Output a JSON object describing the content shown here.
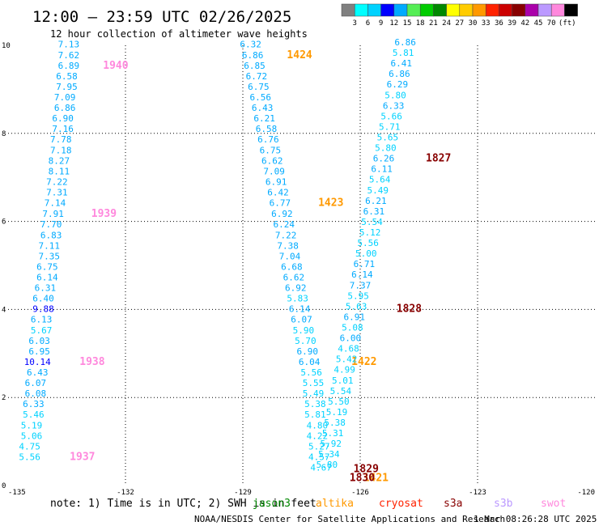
{
  "title": "12:00 – 23:59 UTC 02/26/2025",
  "subtitle": "12 hour collection of altimeter wave heights",
  "color_scale": {
    "unit": "(ft)",
    "colors": [
      "#808080",
      "#00ffff",
      "#00d2ff",
      "#0000ff",
      "#00aaff",
      "#55ee55",
      "#00cc00",
      "#008800",
      "#ffff00",
      "#ffcc00",
      "#ff9900",
      "#ff2200",
      "#cc0000",
      "#880000",
      "#aa00aa",
      "#bb99ff",
      "#ff88dd",
      "#000000"
    ],
    "labels": [
      "3",
      "6",
      "9",
      "12",
      "15",
      "18",
      "21",
      "24",
      "27",
      "30",
      "33",
      "36",
      "39",
      "42",
      "45",
      "70"
    ]
  },
  "chart_data": {
    "type": "scatter",
    "title": "12:00 – 23:59 UTC 02/26/2025",
    "subtitle": "12 hour collection of altimeter wave heights",
    "xlim": [
      -135,
      -120
    ],
    "ylim": [
      0,
      10
    ],
    "xticks": [
      "-135",
      "-132",
      "-129",
      "-126",
      "-123",
      "-120"
    ],
    "yticks": [
      "0",
      "2",
      "4",
      "6",
      "8",
      "10"
    ],
    "grid": true,
    "series": [
      {
        "pass": 1,
        "points": [
          {
            "x": -133.45,
            "y": 9.95,
            "v": "7.13",
            "c": "#00aaff"
          },
          {
            "x": -133.45,
            "y": 9.71,
            "v": "7.62",
            "c": "#00aaff"
          },
          {
            "x": -133.45,
            "y": 9.47,
            "v": "6.89",
            "c": "#00aaff"
          },
          {
            "x": -133.5,
            "y": 9.23,
            "v": "6.58",
            "c": "#00aaff"
          },
          {
            "x": -133.5,
            "y": 8.99,
            "v": "7.95",
            "c": "#00aaff"
          },
          {
            "x": -133.55,
            "y": 8.75,
            "v": "7.09",
            "c": "#00aaff"
          },
          {
            "x": -133.55,
            "y": 8.51,
            "v": "6.86",
            "c": "#00aaff"
          },
          {
            "x": -133.6,
            "y": 8.27,
            "v": "6.90",
            "c": "#00aaff"
          },
          {
            "x": -133.6,
            "y": 8.03,
            "v": "7.16",
            "c": "#00aaff"
          },
          {
            "x": -133.65,
            "y": 7.79,
            "v": "7.78",
            "c": "#00aaff"
          },
          {
            "x": -133.65,
            "y": 7.55,
            "v": "7.18",
            "c": "#00aaff"
          },
          {
            "x": -133.7,
            "y": 7.31,
            "v": "8.27",
            "c": "#00aaff"
          },
          {
            "x": -133.7,
            "y": 7.07,
            "v": "8.11",
            "c": "#00aaff"
          },
          {
            "x": -133.75,
            "y": 6.83,
            "v": "7.22",
            "c": "#00aaff"
          },
          {
            "x": -133.75,
            "y": 6.59,
            "v": "7.31",
            "c": "#00aaff"
          },
          {
            "x": -133.8,
            "y": 6.35,
            "v": "7.14",
            "c": "#00aaff"
          },
          {
            "x": -133.85,
            "y": 6.1,
            "v": "7.91",
            "c": "#00aaff"
          },
          {
            "x": -133.9,
            "y": 5.86,
            "v": "7.70",
            "c": "#00aaff"
          },
          {
            "x": -133.9,
            "y": 5.62,
            "v": "6.83",
            "c": "#00aaff"
          },
          {
            "x": -133.95,
            "y": 5.38,
            "v": "7.11",
            "c": "#00aaff"
          },
          {
            "x": -133.95,
            "y": 5.14,
            "v": "7.35",
            "c": "#00aaff"
          },
          {
            "x": -134.0,
            "y": 4.9,
            "v": "6.75",
            "c": "#00aaff"
          },
          {
            "x": -134.0,
            "y": 4.66,
            "v": "6.14",
            "c": "#00aaff"
          },
          {
            "x": -134.05,
            "y": 4.42,
            "v": "6.31",
            "c": "#00aaff"
          },
          {
            "x": -134.1,
            "y": 4.18,
            "v": "6.40",
            "c": "#00aaff"
          },
          {
            "x": -134.1,
            "y": 3.94,
            "v": "9.88",
            "c": "#0000ff"
          },
          {
            "x": -134.15,
            "y": 3.7,
            "v": "6.13",
            "c": "#00aaff"
          },
          {
            "x": -134.15,
            "y": 3.46,
            "v": "5.67",
            "c": "#00d2ff"
          },
          {
            "x": -134.2,
            "y": 3.22,
            "v": "6.03",
            "c": "#00aaff"
          },
          {
            "x": -134.2,
            "y": 2.98,
            "v": "6.95",
            "c": "#00aaff"
          },
          {
            "x": -134.25,
            "y": 2.74,
            "v": "10.14",
            "c": "#0000ff"
          },
          {
            "x": -134.25,
            "y": 2.5,
            "v": "6.43",
            "c": "#00aaff"
          },
          {
            "x": -134.3,
            "y": 2.26,
            "v": "6.07",
            "c": "#00aaff"
          },
          {
            "x": -134.3,
            "y": 2.02,
            "v": "6.08",
            "c": "#00aaff"
          },
          {
            "x": -134.35,
            "y": 1.78,
            "v": "6.33",
            "c": "#00aaff"
          },
          {
            "x": -134.35,
            "y": 1.54,
            "v": "5.46",
            "c": "#00d2ff"
          },
          {
            "x": -134.4,
            "y": 1.3,
            "v": "5.19",
            "c": "#00d2ff"
          },
          {
            "x": -134.4,
            "y": 1.06,
            "v": "5.06",
            "c": "#00d2ff"
          },
          {
            "x": -134.45,
            "y": 0.82,
            "v": "4.75",
            "c": "#00d2ff"
          },
          {
            "x": -134.45,
            "y": 0.58,
            "v": "5.56",
            "c": "#00d2ff"
          }
        ],
        "times": [
          {
            "x": -132.25,
            "y": 9.47,
            "t": "1940",
            "c": "#ff88dd"
          },
          {
            "x": -132.55,
            "y": 6.1,
            "t": "1939",
            "c": "#ff88dd"
          },
          {
            "x": -132.85,
            "y": 2.74,
            "t": "1938",
            "c": "#ff88dd"
          },
          {
            "x": -133.1,
            "y": 0.58,
            "t": "1937",
            "c": "#ff88dd"
          }
        ]
      },
      {
        "pass": 2,
        "points": [
          {
            "x": -128.8,
            "y": 9.95,
            "v": "6.32",
            "c": "#00aaff"
          },
          {
            "x": -128.75,
            "y": 9.71,
            "v": "6.86",
            "c": "#00aaff"
          },
          {
            "x": -128.7,
            "y": 9.47,
            "v": "6.85",
            "c": "#00aaff"
          },
          {
            "x": -128.65,
            "y": 9.23,
            "v": "6.72",
            "c": "#00aaff"
          },
          {
            "x": -128.6,
            "y": 8.99,
            "v": "6.75",
            "c": "#00aaff"
          },
          {
            "x": -128.55,
            "y": 8.75,
            "v": "6.56",
            "c": "#00aaff"
          },
          {
            "x": -128.5,
            "y": 8.51,
            "v": "6.43",
            "c": "#00aaff"
          },
          {
            "x": -128.45,
            "y": 8.27,
            "v": "6.21",
            "c": "#00aaff"
          },
          {
            "x": -128.4,
            "y": 8.03,
            "v": "6.58",
            "c": "#00aaff"
          },
          {
            "x": -128.35,
            "y": 7.79,
            "v": "6.76",
            "c": "#00aaff"
          },
          {
            "x": -128.3,
            "y": 7.55,
            "v": "6.75",
            "c": "#00aaff"
          },
          {
            "x": -128.25,
            "y": 7.31,
            "v": "6.62",
            "c": "#00aaff"
          },
          {
            "x": -128.2,
            "y": 7.07,
            "v": "7.09",
            "c": "#00aaff"
          },
          {
            "x": -128.15,
            "y": 6.83,
            "v": "6.91",
            "c": "#00aaff"
          },
          {
            "x": -128.1,
            "y": 6.59,
            "v": "6.42",
            "c": "#00aaff"
          },
          {
            "x": -128.05,
            "y": 6.35,
            "v": "6.77",
            "c": "#00aaff"
          },
          {
            "x": -128.0,
            "y": 6.1,
            "v": "6.92",
            "c": "#00aaff"
          },
          {
            "x": -127.95,
            "y": 5.86,
            "v": "6.24",
            "c": "#00aaff"
          },
          {
            "x": -127.9,
            "y": 5.62,
            "v": "7.22",
            "c": "#00aaff"
          },
          {
            "x": -127.85,
            "y": 5.38,
            "v": "7.38",
            "c": "#00aaff"
          },
          {
            "x": -127.8,
            "y": 5.14,
            "v": "7.04",
            "c": "#00aaff"
          },
          {
            "x": -127.75,
            "y": 4.9,
            "v": "6.68",
            "c": "#00aaff"
          },
          {
            "x": -127.7,
            "y": 4.66,
            "v": "6.62",
            "c": "#00aaff"
          },
          {
            "x": -127.65,
            "y": 4.42,
            "v": "6.92",
            "c": "#00aaff"
          },
          {
            "x": -127.6,
            "y": 4.18,
            "v": "5.83",
            "c": "#00d2ff"
          },
          {
            "x": -127.55,
            "y": 3.94,
            "v": "6.14",
            "c": "#00aaff"
          },
          {
            "x": -127.5,
            "y": 3.7,
            "v": "6.07",
            "c": "#00aaff"
          },
          {
            "x": -127.45,
            "y": 3.46,
            "v": "5.90",
            "c": "#00d2ff"
          },
          {
            "x": -127.4,
            "y": 3.22,
            "v": "5.70",
            "c": "#00d2ff"
          },
          {
            "x": -127.35,
            "y": 2.98,
            "v": "6.90",
            "c": "#00aaff"
          },
          {
            "x": -127.3,
            "y": 2.74,
            "v": "6.04",
            "c": "#00aaff"
          },
          {
            "x": -127.25,
            "y": 2.5,
            "v": "5.56",
            "c": "#00d2ff"
          },
          {
            "x": -127.2,
            "y": 2.26,
            "v": "5.55",
            "c": "#00d2ff"
          },
          {
            "x": -127.2,
            "y": 2.02,
            "v": "5.49",
            "c": "#00d2ff"
          },
          {
            "x": -127.15,
            "y": 1.78,
            "v": "5.38",
            "c": "#00d2ff"
          },
          {
            "x": -127.15,
            "y": 1.54,
            "v": "5.81",
            "c": "#00d2ff"
          },
          {
            "x": -127.1,
            "y": 1.3,
            "v": "4.80",
            "c": "#00d2ff"
          },
          {
            "x": -127.1,
            "y": 1.06,
            "v": "4.22",
            "c": "#00d2ff"
          },
          {
            "x": -127.05,
            "y": 0.82,
            "v": "5.27",
            "c": "#00d2ff"
          },
          {
            "x": -127.05,
            "y": 0.58,
            "v": "4.57",
            "c": "#00d2ff"
          },
          {
            "x": -127.0,
            "y": 0.34,
            "v": "4.67",
            "c": "#00d2ff"
          }
        ],
        "times": [
          {
            "x": -127.55,
            "y": 9.71,
            "t": "1424",
            "c": "#ff9900"
          },
          {
            "x": -126.75,
            "y": 6.35,
            "t": "1423",
            "c": "#ff9900"
          },
          {
            "x": -125.9,
            "y": 2.74,
            "t": "1422",
            "c": "#ff9900"
          },
          {
            "x": -125.6,
            "y": 0.1,
            "t": "1421",
            "c": "#ff9900"
          }
        ]
      },
      {
        "pass": 3,
        "points": [
          {
            "x": -124.85,
            "y": 10.0,
            "v": "6.86",
            "c": "#00aaff"
          },
          {
            "x": -124.9,
            "y": 9.76,
            "v": "5.81",
            "c": "#00d2ff"
          },
          {
            "x": -124.95,
            "y": 9.52,
            "v": "6.41",
            "c": "#00aaff"
          },
          {
            "x": -125.0,
            "y": 9.28,
            "v": "6.86",
            "c": "#00aaff"
          },
          {
            "x": -125.05,
            "y": 9.04,
            "v": "6.29",
            "c": "#00aaff"
          },
          {
            "x": -125.1,
            "y": 8.8,
            "v": "5.80",
            "c": "#00d2ff"
          },
          {
            "x": -125.15,
            "y": 8.56,
            "v": "6.33",
            "c": "#00aaff"
          },
          {
            "x": -125.2,
            "y": 8.32,
            "v": "5.66",
            "c": "#00d2ff"
          },
          {
            "x": -125.25,
            "y": 8.08,
            "v": "5.71",
            "c": "#00d2ff"
          },
          {
            "x": -125.3,
            "y": 7.84,
            "v": "5.65",
            "c": "#00d2ff"
          },
          {
            "x": -125.35,
            "y": 7.6,
            "v": "5.80",
            "c": "#00d2ff"
          },
          {
            "x": -125.4,
            "y": 7.36,
            "v": "6.26",
            "c": "#00aaff"
          },
          {
            "x": -125.45,
            "y": 7.12,
            "v": "6.11",
            "c": "#00aaff"
          },
          {
            "x": -125.5,
            "y": 6.88,
            "v": "5.64",
            "c": "#00d2ff"
          },
          {
            "x": -125.55,
            "y": 6.64,
            "v": "5.49",
            "c": "#00d2ff"
          },
          {
            "x": -125.6,
            "y": 6.4,
            "v": "6.21",
            "c": "#00aaff"
          },
          {
            "x": -125.65,
            "y": 6.16,
            "v": "6.31",
            "c": "#00aaff"
          },
          {
            "x": -125.7,
            "y": 5.92,
            "v": "5.54",
            "c": "#00d2ff"
          },
          {
            "x": -125.75,
            "y": 5.68,
            "v": "5.12",
            "c": "#00d2ff"
          },
          {
            "x": -125.8,
            "y": 5.44,
            "v": "5.56",
            "c": "#00d2ff"
          },
          {
            "x": -125.85,
            "y": 5.2,
            "v": "5.00",
            "c": "#00d2ff"
          },
          {
            "x": -125.9,
            "y": 4.96,
            "v": "6.71",
            "c": "#00aaff"
          },
          {
            "x": -125.95,
            "y": 4.72,
            "v": "6.14",
            "c": "#00aaff"
          },
          {
            "x": -126.0,
            "y": 4.48,
            "v": "7.37",
            "c": "#00aaff"
          },
          {
            "x": -126.05,
            "y": 4.24,
            "v": "5.95",
            "c": "#00d2ff"
          },
          {
            "x": -126.1,
            "y": 4.0,
            "v": "5.63",
            "c": "#00d2ff"
          },
          {
            "x": -126.15,
            "y": 3.76,
            "v": "6.91",
            "c": "#00aaff"
          },
          {
            "x": -126.2,
            "y": 3.52,
            "v": "5.08",
            "c": "#00d2ff"
          },
          {
            "x": -126.25,
            "y": 3.28,
            "v": "6.00",
            "c": "#00aaff"
          },
          {
            "x": -126.3,
            "y": 3.04,
            "v": "4.68",
            "c": "#00d2ff"
          },
          {
            "x": -126.35,
            "y": 2.8,
            "v": "5.42",
            "c": "#00d2ff"
          },
          {
            "x": -126.4,
            "y": 2.56,
            "v": "4.99",
            "c": "#00d2ff"
          },
          {
            "x": -126.45,
            "y": 2.32,
            "v": "5.01",
            "c": "#00d2ff"
          },
          {
            "x": -126.5,
            "y": 2.08,
            "v": "5.54",
            "c": "#00d2ff"
          },
          {
            "x": -126.55,
            "y": 1.84,
            "v": "5.50",
            "c": "#00d2ff"
          },
          {
            "x": -126.6,
            "y": 1.6,
            "v": "5.19",
            "c": "#00d2ff"
          },
          {
            "x": -126.65,
            "y": 1.36,
            "v": "5.38",
            "c": "#00d2ff"
          },
          {
            "x": -126.7,
            "y": 1.12,
            "v": "5.31",
            "c": "#00d2ff"
          },
          {
            "x": -126.75,
            "y": 0.88,
            "v": "5.92",
            "c": "#00d2ff"
          },
          {
            "x": -126.8,
            "y": 0.64,
            "v": "5.34",
            "c": "#00d2ff"
          },
          {
            "x": -126.85,
            "y": 0.4,
            "v": "5.80",
            "c": "#00d2ff"
          }
        ],
        "times": [
          {
            "x": -124.0,
            "y": 7.36,
            "t": "1827",
            "c": "#880000"
          },
          {
            "x": -124.75,
            "y": 3.94,
            "t": "1828",
            "c": "#880000"
          },
          {
            "x": -125.85,
            "y": 0.3,
            "t": "1829",
            "c": "#880000"
          },
          {
            "x": -125.95,
            "y": 0.1,
            "t": "1830",
            "c": "#880000"
          }
        ]
      }
    ]
  },
  "footer": {
    "note": "note: 1) Time is in UTC; 2) SWH is in feet",
    "satellites": [
      {
        "name": "jason3",
        "color": "#008800"
      },
      {
        "name": "altika",
        "color": "#ff9900"
      },
      {
        "name": "cryosat",
        "color": "#ff2200"
      },
      {
        "name": "s3a",
        "color": "#880000"
      },
      {
        "name": "s3b",
        "color": "#bb99ff"
      },
      {
        "name": "swot",
        "color": "#ff88dd"
      }
    ],
    "credit": "NOAA/NESDIS Center for Satellite Applications and Research",
    "timestamp": "1 Mar 08:26:28 UTC 2025"
  }
}
